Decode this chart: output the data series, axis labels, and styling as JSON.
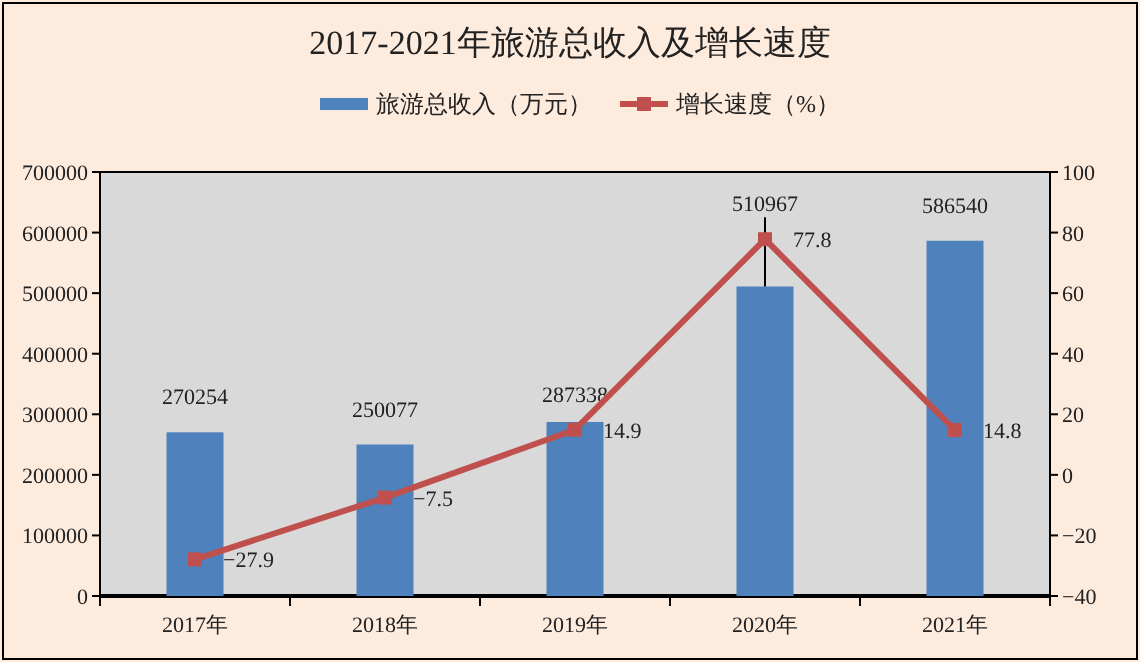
{
  "chart_data": {
    "type": "bar",
    "title": "2017-2021年旅游总收入及增长速度",
    "categories": [
      "2017年",
      "2018年",
      "2019年",
      "2020年",
      "2021年"
    ],
    "series": [
      {
        "name": "旅游总收入（万元）",
        "color": "#4f81bd",
        "values": [
          270254,
          250077,
          287338,
          510967,
          586540
        ]
      },
      {
        "name": "增长速度（%）",
        "type": "line",
        "axis": "y2",
        "color": "#c0504d",
        "values": [
          -27.9,
          -7.5,
          14.9,
          77.8,
          14.8
        ]
      }
    ],
    "ylim": [
      0,
      700000
    ],
    "yticks": [
      0,
      100000,
      200000,
      300000,
      400000,
      500000,
      600000,
      700000
    ],
    "y2lim": [
      -40,
      100
    ],
    "y2ticks": [
      -40,
      -20,
      0,
      20,
      40,
      60,
      80,
      100
    ],
    "legend": "top",
    "data_labels": true,
    "marker": "square",
    "grid": false
  }
}
